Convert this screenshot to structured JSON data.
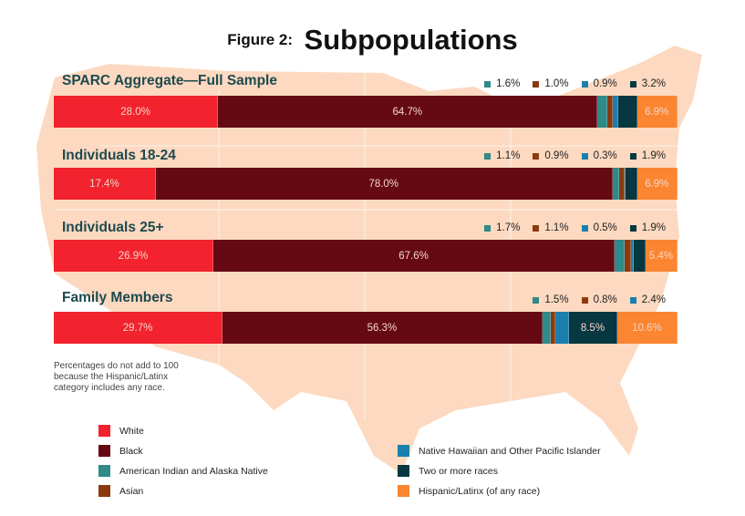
{
  "title": {
    "figure": "Figure 2:",
    "main": "Subpopulations"
  },
  "note": "Percentages do not add to 100 because the Hispanic/Latinx category includes any race.",
  "chart_data": {
    "type": "bar",
    "orientation": "horizontal-stacked",
    "title": "Figure 2: Subpopulations",
    "series": [
      {
        "name": "White",
        "color": "#f2222e"
      },
      {
        "name": "Black",
        "color": "#650a12"
      },
      {
        "name": "American Indian and Alaska Native",
        "color": "#2f8a88"
      },
      {
        "name": "Asian",
        "color": "#8b3a10"
      },
      {
        "name": "Native Hawaiian and Other Pacific Islander",
        "color": "#1b7fae"
      },
      {
        "name": "Two or more races",
        "color": "#073740"
      },
      {
        "name": "Hispanic/Latinx (of any race)",
        "color": "#fb8530"
      }
    ],
    "categories": [
      "SPARC Aggregate—Full Sample",
      "Individuals 18-24",
      "Individuals 25+",
      "Family Members"
    ],
    "values": [
      [
        28.0,
        64.7,
        1.6,
        1.0,
        0.9,
        3.2,
        6.9
      ],
      [
        17.4,
        78.0,
        1.1,
        0.9,
        0.3,
        1.9,
        6.9
      ],
      [
        26.9,
        67.6,
        1.7,
        1.1,
        0.5,
        1.9,
        5.4
      ],
      [
        29.7,
        56.3,
        1.5,
        0.8,
        2.4,
        8.5,
        10.6
      ]
    ],
    "labels": [
      [
        "28.0%",
        "64.7%",
        "1.6%",
        "1.0%",
        "0.9%",
        "3.2%",
        "6.9%"
      ],
      [
        "17.4%",
        "78.0%",
        "1.1%",
        "0.9%",
        "0.3%",
        "1.9%",
        "6.9%"
      ],
      [
        "26.9%",
        "67.6%",
        "1.7%",
        "1.1%",
        "0.5%",
        "1.9%",
        "5.4%"
      ],
      [
        "29.7%",
        "56.3%",
        "1.5%",
        "0.8%",
        "2.4%",
        "8.5%",
        "10.6%"
      ]
    ],
    "inside": [
      [
        0,
        1,
        6
      ],
      [
        0,
        1,
        6
      ],
      [
        0,
        1,
        6
      ],
      [
        0,
        1,
        5,
        6
      ]
    ],
    "legend_position": "bottom"
  }
}
